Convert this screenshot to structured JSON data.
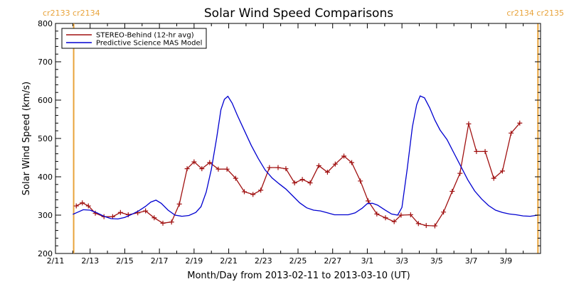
{
  "chart_data": {
    "type": "line",
    "title": "Solar Wind Speed Comparisons",
    "xlabel": "Month/Day from 2013-02-11 to 2013-03-10 (UT)",
    "ylabel": "Solar Wind Speed (km/s)",
    "ylim": [
      200,
      800
    ],
    "xlim": [
      0,
      28
    ],
    "y_ticks": [
      200,
      300,
      400,
      500,
      600,
      700,
      800
    ],
    "x_ticks": [
      {
        "day": 0,
        "label": "2/11"
      },
      {
        "day": 2,
        "label": "2/13"
      },
      {
        "day": 4,
        "label": "2/15"
      },
      {
        "day": 6,
        "label": "2/17"
      },
      {
        "day": 8,
        "label": "2/19"
      },
      {
        "day": 10,
        "label": "2/21"
      },
      {
        "day": 12,
        "label": "2/23"
      },
      {
        "day": 14,
        "label": "2/25"
      },
      {
        "day": 16,
        "label": "2/27"
      },
      {
        "day": 18,
        "label": "3/1"
      },
      {
        "day": 20,
        "label": "3/3"
      },
      {
        "day": 22,
        "label": "3/5"
      },
      {
        "day": 24,
        "label": "3/7"
      },
      {
        "day": 26,
        "label": "3/9"
      }
    ],
    "grid": false,
    "legend_position": "top-left",
    "carrington_markers": [
      {
        "day": 1.05,
        "label": "cr2133 cr2134",
        "side": "left",
        "color": "#e8a33a"
      },
      {
        "day": 27.85,
        "label": "cr2134 cr2135",
        "side": "right",
        "color": "#e8a33a"
      }
    ],
    "series": [
      {
        "name": "STEREO-Behind (12-hr avg)",
        "color": "#a01010",
        "marker": "plus",
        "points": [
          [
            1.2,
            324
          ],
          [
            1.55,
            332
          ],
          [
            1.9,
            324
          ],
          [
            2.3,
            305
          ],
          [
            2.8,
            296
          ],
          [
            3.3,
            296
          ],
          [
            3.75,
            307
          ],
          [
            4.2,
            301
          ],
          [
            4.75,
            306
          ],
          [
            5.2,
            311
          ],
          [
            5.7,
            293
          ],
          [
            6.2,
            279
          ],
          [
            6.7,
            282
          ],
          [
            7.15,
            329
          ],
          [
            7.6,
            421
          ],
          [
            8.0,
            439
          ],
          [
            8.45,
            421
          ],
          [
            8.9,
            437
          ],
          [
            9.4,
            420
          ],
          [
            9.9,
            420
          ],
          [
            10.4,
            396
          ],
          [
            10.9,
            361
          ],
          [
            11.4,
            354
          ],
          [
            11.85,
            365
          ],
          [
            12.35,
            424
          ],
          [
            12.85,
            424
          ],
          [
            13.3,
            421
          ],
          [
            13.8,
            384
          ],
          [
            14.25,
            393
          ],
          [
            14.7,
            384
          ],
          [
            15.2,
            429
          ],
          [
            15.7,
            412
          ],
          [
            16.15,
            433
          ],
          [
            16.65,
            454
          ],
          [
            17.1,
            437
          ],
          [
            17.6,
            389
          ],
          [
            18.05,
            337
          ],
          [
            18.55,
            303
          ],
          [
            19.05,
            293
          ],
          [
            19.55,
            283
          ],
          [
            19.95,
            300
          ],
          [
            20.5,
            301
          ],
          [
            20.95,
            278
          ],
          [
            21.4,
            273
          ],
          [
            21.9,
            272
          ],
          [
            22.4,
            308
          ],
          [
            22.9,
            362
          ],
          [
            23.35,
            409
          ],
          [
            23.85,
            538
          ],
          [
            24.3,
            466
          ],
          [
            24.8,
            466
          ],
          [
            25.3,
            396
          ],
          [
            25.8,
            415
          ],
          [
            26.3,
            514
          ],
          [
            26.8,
            540
          ]
        ]
      },
      {
        "name": "Predictive Science MAS Model",
        "color": "#0000d0",
        "marker": "none",
        "points": [
          [
            1.0,
            302
          ],
          [
            1.3,
            308
          ],
          [
            1.6,
            314
          ],
          [
            2.0,
            313
          ],
          [
            2.4,
            306
          ],
          [
            2.8,
            297
          ],
          [
            3.2,
            291
          ],
          [
            3.6,
            290
          ],
          [
            4.0,
            294
          ],
          [
            4.4,
            302
          ],
          [
            4.8,
            311
          ],
          [
            5.2,
            323
          ],
          [
            5.5,
            334
          ],
          [
            5.8,
            339
          ],
          [
            6.1,
            331
          ],
          [
            6.5,
            313
          ],
          [
            6.9,
            300
          ],
          [
            7.3,
            297
          ],
          [
            7.7,
            299
          ],
          [
            8.1,
            307
          ],
          [
            8.4,
            322
          ],
          [
            8.7,
            360
          ],
          [
            9.0,
            420
          ],
          [
            9.3,
            500
          ],
          [
            9.55,
            575
          ],
          [
            9.75,
            602
          ],
          [
            9.95,
            610
          ],
          [
            10.2,
            592
          ],
          [
            10.5,
            560
          ],
          [
            10.9,
            521
          ],
          [
            11.3,
            482
          ],
          [
            11.7,
            448
          ],
          [
            12.1,
            418
          ],
          [
            12.5,
            397
          ],
          [
            12.9,
            382
          ],
          [
            13.3,
            368
          ],
          [
            13.7,
            350
          ],
          [
            14.1,
            332
          ],
          [
            14.5,
            319
          ],
          [
            14.9,
            313
          ],
          [
            15.3,
            311
          ],
          [
            15.7,
            306
          ],
          [
            16.1,
            301
          ],
          [
            16.5,
            301
          ],
          [
            16.9,
            301
          ],
          [
            17.3,
            306
          ],
          [
            17.7,
            318
          ],
          [
            18.0,
            330
          ],
          [
            18.3,
            331
          ],
          [
            18.6,
            326
          ],
          [
            19.0,
            314
          ],
          [
            19.4,
            303
          ],
          [
            19.75,
            300
          ],
          [
            20.0,
            320
          ],
          [
            20.3,
            420
          ],
          [
            20.6,
            530
          ],
          [
            20.85,
            588
          ],
          [
            21.05,
            611
          ],
          [
            21.3,
            606
          ],
          [
            21.6,
            580
          ],
          [
            21.9,
            548
          ],
          [
            22.2,
            522
          ],
          [
            22.6,
            497
          ],
          [
            23.0,
            462
          ],
          [
            23.4,
            427
          ],
          [
            23.8,
            392
          ],
          [
            24.2,
            363
          ],
          [
            24.6,
            342
          ],
          [
            25.0,
            325
          ],
          [
            25.4,
            313
          ],
          [
            25.8,
            307
          ],
          [
            26.2,
            303
          ],
          [
            26.6,
            301
          ],
          [
            27.0,
            298
          ],
          [
            27.4,
            297
          ],
          [
            27.85,
            300
          ]
        ]
      }
    ]
  }
}
